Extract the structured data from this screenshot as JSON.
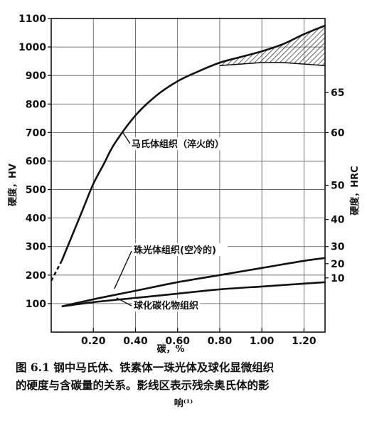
{
  "chart_data": {
    "type": "line",
    "xlabel": "碳，%",
    "ylabel_left": "硬度，HV",
    "ylabel_right": "硬度，HRC",
    "xlim": [
      0.0,
      1.3
    ],
    "ylim": [
      0,
      1100
    ],
    "x_ticks": [
      0.2,
      0.4,
      0.6,
      0.8,
      1.0,
      1.2
    ],
    "x_tick_labels": [
      "0.20",
      "0.40",
      "0.60",
      "0.80",
      "1.00",
      "1.20"
    ],
    "y_ticks": [
      100,
      200,
      300,
      400,
      500,
      600,
      700,
      800,
      900,
      1000,
      1100
    ],
    "y_tick_labels": [
      "100",
      "200",
      "300",
      "400",
      "500",
      "600",
      "700",
      "800",
      "900",
      "1000",
      "1100"
    ],
    "right_ticks": [
      {
        "label": "10",
        "hv": 190
      },
      {
        "label": "20",
        "hv": 240
      },
      {
        "label": "30",
        "hv": 300
      },
      {
        "label": "40",
        "hv": 395
      },
      {
        "label": "50",
        "hv": 515
      },
      {
        "label": "60",
        "hv": 700
      },
      {
        "label": "65",
        "hv": 840
      }
    ],
    "grid": true,
    "series": [
      {
        "name": "马氏体组织（淬火的）",
        "x": [
          0.0,
          0.05,
          0.1,
          0.15,
          0.2,
          0.25,
          0.3,
          0.4,
          0.5,
          0.6,
          0.7,
          0.8,
          0.9,
          1.0,
          1.1,
          1.2,
          1.3
        ],
        "values": [
          180,
          250,
          340,
          430,
          520,
          590,
          660,
          760,
          830,
          880,
          915,
          945,
          965,
          985,
          1010,
          1045,
          1075
        ],
        "dashed_until": 0.05
      },
      {
        "name": "马氏体组织下限（影线区）",
        "x": [
          0.8,
          0.9,
          1.0,
          1.1,
          1.2,
          1.3
        ],
        "values": [
          935,
          940,
          945,
          945,
          940,
          935
        ]
      },
      {
        "name": "珠光体组织（空冷的）",
        "x": [
          0.05,
          0.2,
          0.4,
          0.6,
          0.8,
          1.0,
          1.2,
          1.3
        ],
        "values": [
          90,
          115,
          145,
          175,
          200,
          225,
          250,
          260
        ]
      },
      {
        "name": "球化碳化物组织",
        "x": [
          0.05,
          0.2,
          0.4,
          0.6,
          0.8,
          1.0,
          1.2,
          1.3
        ],
        "values": [
          90,
          105,
          120,
          135,
          150,
          160,
          170,
          175
        ]
      }
    ],
    "annotations": [
      {
        "text": "马氏体组织（淬火的）",
        "target_x": 0.35,
        "target_y": 690
      },
      {
        "text": "珠光体组织(空冷的)",
        "target_x": 0.33,
        "target_y": 150
      },
      {
        "text": "球化碳化物组织",
        "target_x": 0.35,
        "target_y": 118
      }
    ]
  },
  "caption": {
    "line1": "图 6.1  钢中马氏体、铁素体一珠光体及球化显微组织",
    "line2": "的硬度与含碳量的关系。影线区表示残余奥氏体的影",
    "line3": "响⁽¹⁾"
  }
}
